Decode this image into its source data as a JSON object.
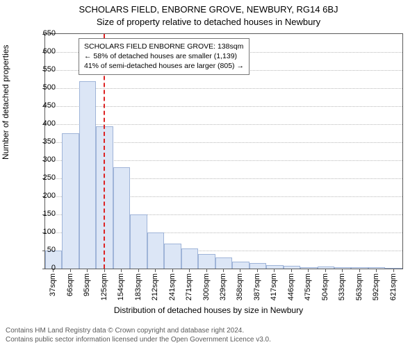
{
  "title_line1": "SCHOLARS FIELD, ENBORNE GROVE, NEWBURY, RG14 6BJ",
  "title_line2": "Size of property relative to detached houses in Newbury",
  "y_axis_label": "Number of detached properties",
  "x_axis_label": "Distribution of detached houses by size in Newbury",
  "chart": {
    "type": "histogram",
    "background_color": "#ffffff",
    "border_color": "#5a5a5a",
    "grid_color": "#b8b8b8",
    "bar_fill": "#dce6f6",
    "bar_border": "#9fb4d8",
    "ylim": [
      0,
      650
    ],
    "yticks": [
      0,
      50,
      100,
      150,
      200,
      250,
      300,
      350,
      400,
      450,
      500,
      550,
      600,
      650
    ],
    "x_categories": [
      "37sqm",
      "66sqm",
      "95sqm",
      "125sqm",
      "154sqm",
      "183sqm",
      "212sqm",
      "241sqm",
      "271sqm",
      "300sqm",
      "329sqm",
      "358sqm",
      "387sqm",
      "417sqm",
      "446sqm",
      "475sqm",
      "504sqm",
      "533sqm",
      "563sqm",
      "592sqm",
      "621sqm"
    ],
    "values": [
      50,
      375,
      520,
      395,
      280,
      150,
      100,
      70,
      55,
      40,
      30,
      20,
      15,
      10,
      7,
      4,
      5,
      4,
      3,
      3,
      2
    ],
    "reference": {
      "position_index": 3.42,
      "color": "#dd2222"
    }
  },
  "annotation": {
    "line1": "SCHOLARS FIELD ENBORNE GROVE: 138sqm",
    "line2": "← 58% of detached houses are smaller (1,139)",
    "line3": "41% of semi-detached houses are larger (805) →"
  },
  "footer_line1": "Contains HM Land Registry data © Crown copyright and database right 2024.",
  "footer_line2": "Contains public sector information licensed under the Open Government Licence v3.0.",
  "font_family": "Arial",
  "tick_fontsize": 11,
  "label_fontsize": 12,
  "title_fontsize": 13
}
